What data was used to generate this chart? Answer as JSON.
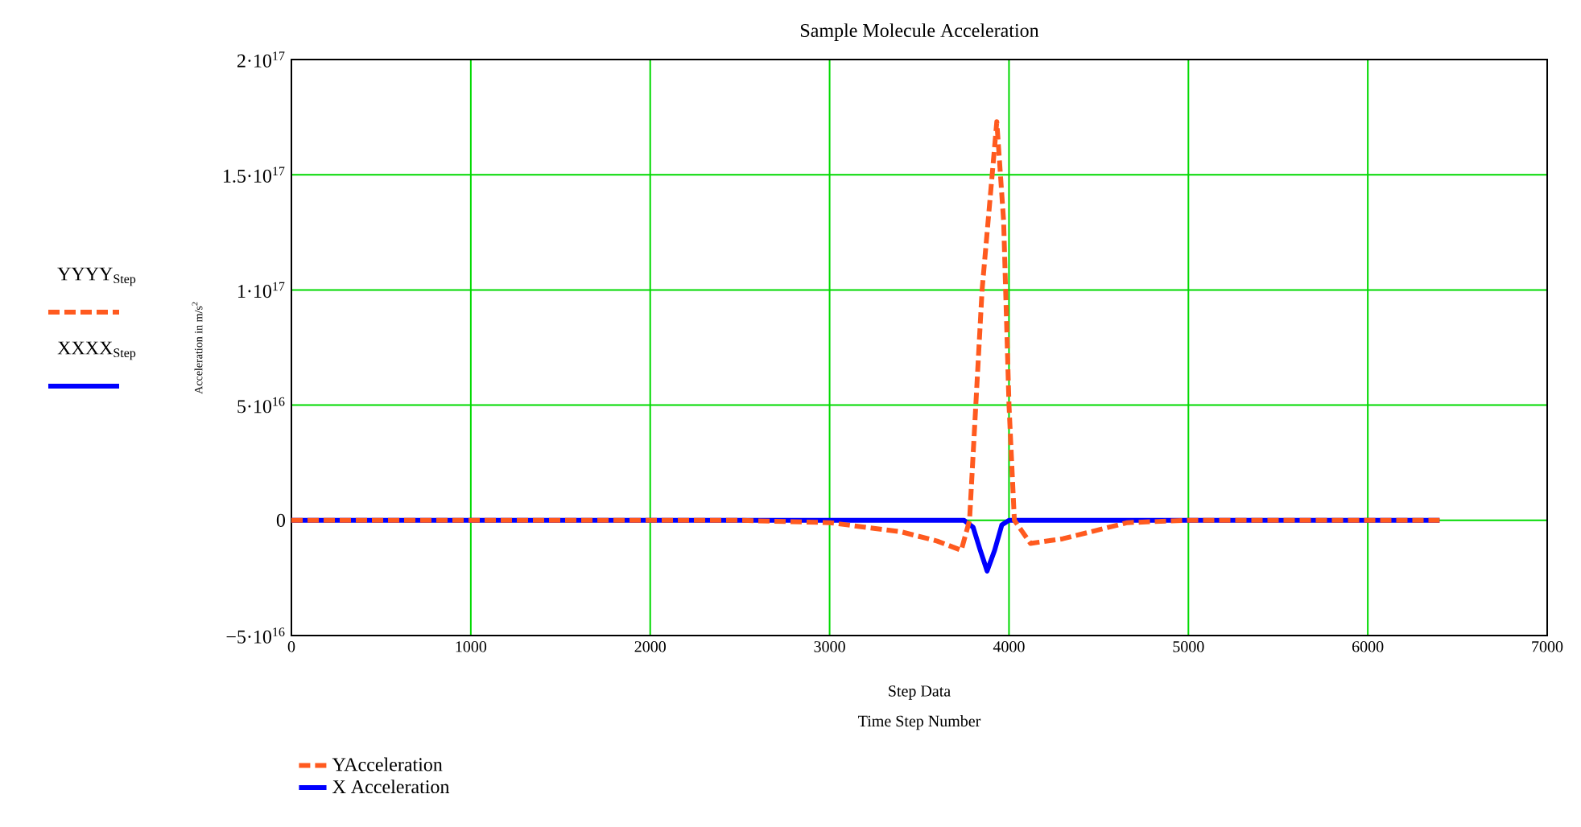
{
  "chart_data": {
    "type": "line",
    "title": "Sample Molecule Acceleration",
    "xlabel": "Step Data",
    "ylabel": "Acceleration in m/s$^{2}$",
    "annotations": [
      "Time Step Number",
      "YYYY$_{Step}$",
      "XXXX$_{Step}$"
    ],
    "series": [
      {
        "name": "YAcceleration",
        "color": "#ff5a1f",
        "line_style": "dashed",
        "x": [
          0,
          2500,
          3000,
          3400,
          3600,
          3734,
          3780,
          3850,
          3932,
          3970,
          4000,
          4030,
          4120,
          4300,
          4660,
          5000,
          6400
        ],
        "values": [
          0,
          0,
          -1000000000000000.0,
          -5000000000000000.0,
          -9000000000000000.0,
          -1.3e+16,
          0,
          1e+17,
          1.73e+17,
          1.3e+17,
          5e+16,
          0,
          -1e+16,
          -8000000000000000.0,
          -1000000000000000.0,
          0,
          0
        ]
      },
      {
        "name": "X Acceleration",
        "color": "#0000ff",
        "line_style": "solid",
        "x": [
          0,
          3750,
          3800,
          3840,
          3878,
          3920,
          3960,
          4000,
          6400
        ],
        "values": [
          0,
          0,
          -3000000000000000.0,
          -1.3e+16,
          -2.2e+16,
          -1.3e+16,
          -2000000000000000.0,
          0,
          0
        ]
      }
    ],
    "xlim": [
      0,
      7000
    ],
    "xticks": [
      0,
      1000,
      2000,
      3000,
      4000,
      5000,
      6000,
      7000
    ],
    "ylim": [
      -5e+16,
      2e+17
    ],
    "yticks": [
      {
        "value": -5e+16,
        "label": "−5·10$^{16}$"
      },
      {
        "value": 0,
        "label": "0"
      },
      {
        "value": 5e+16,
        "label": "5·10$^{16}$"
      },
      {
        "value": 1e+17,
        "label": "1·10$^{17}$"
      },
      {
        "value": 1.5e+17,
        "label": "1.5·10$^{17}$"
      },
      {
        "value": 2e+17,
        "label": "2·10$^{17}$"
      }
    ],
    "grid": true,
    "legend": "bottom left",
    "marker": "none"
  }
}
